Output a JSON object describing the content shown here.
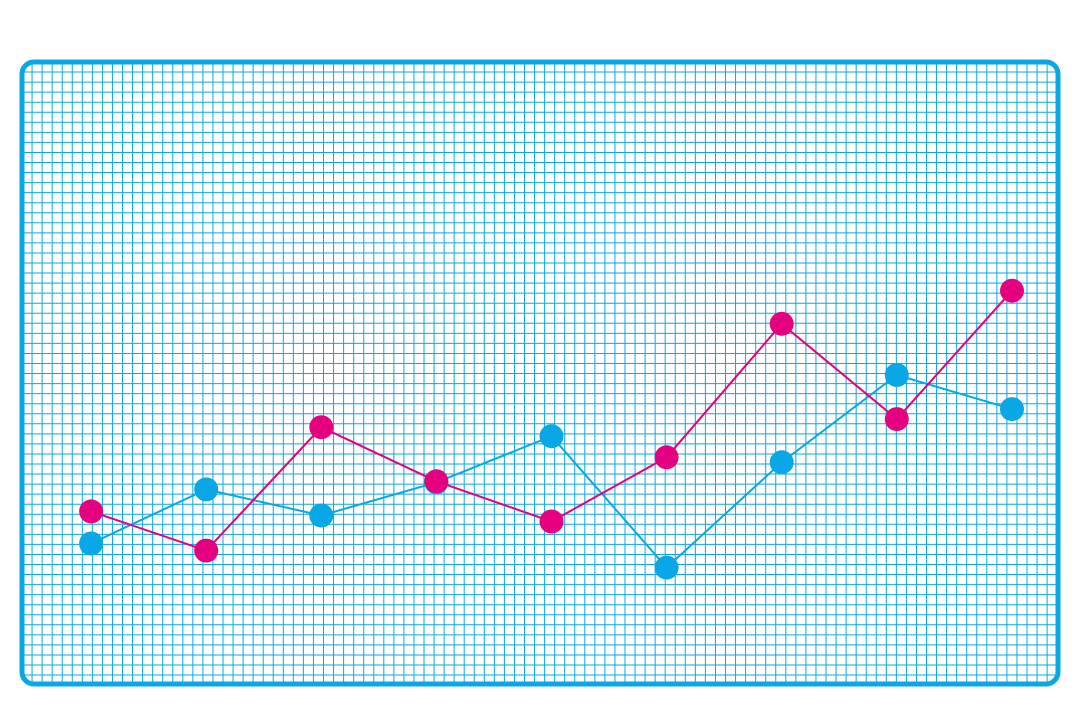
{
  "colors": {
    "frame": "#0aa7e6",
    "grid": "#0aa7e6",
    "series_blue": "#0aa7e6",
    "series_pink": "#e5007f",
    "background": "#ffffff"
  },
  "chart_data": {
    "type": "line",
    "x": [
      1,
      2,
      3,
      4,
      5,
      6,
      7,
      8,
      9
    ],
    "xlim": [
      0.4,
      9.4
    ],
    "ylim": [
      0,
      62
    ],
    "grid": true,
    "legend": "none",
    "title": "",
    "xlabel": "",
    "ylabel": "",
    "series": [
      {
        "color": "#0aa7e6",
        "values": [
          14,
          19.4,
          16.8,
          20.1,
          24.7,
          11.6,
          22.1,
          30.8,
          27.4
        ]
      },
      {
        "color": "#e5007f",
        "values": [
          17.2,
          13.3,
          25.6,
          20.2,
          16.2,
          22.6,
          35.9,
          26.4,
          39.2
        ]
      }
    ]
  }
}
